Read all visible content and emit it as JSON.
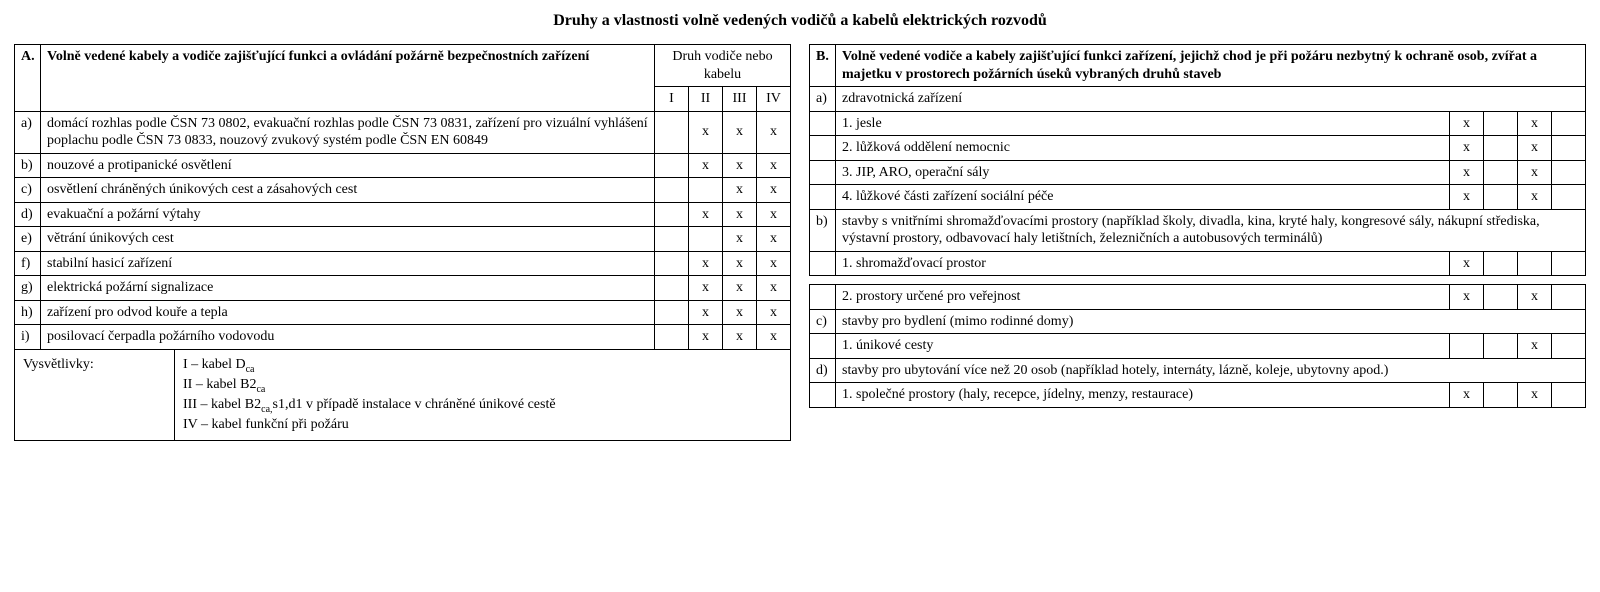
{
  "title": "Druhy a vlastnosti volně vedených vodičů a kabelů elektrických rozvodů",
  "tableA": {
    "sectionLetter": "A.",
    "sectionTitle": "Volně vedené kabely a vodiče zajišťující funkci a ovládání požárně bezpečnostních zařízení",
    "colGroup": "Druh vodiče nebo kabelu",
    "cols": [
      "I",
      "II",
      "III",
      "IV"
    ],
    "rows": [
      {
        "letter": "a)",
        "text": "domácí rozhlas podle ČSN 73 0802, evakuační rozhlas podle ČSN 73 0831, zařízení pro vizuální vyhlášení poplachu podle ČSN 73 0833, nouzový zvukový systém podle ČSN EN 60849",
        "marks": [
          "",
          "x",
          "x",
          "x"
        ]
      },
      {
        "letter": "b)",
        "text": "nouzové a protipanické osvětlení",
        "marks": [
          "",
          "x",
          "x",
          "x"
        ]
      },
      {
        "letter": "c)",
        "text": "osvětlení chráněných únikových cest a zásahových cest",
        "marks": [
          "",
          "",
          "x",
          "x"
        ]
      },
      {
        "letter": "d)",
        "text": "evakuační a požární výtahy",
        "marks": [
          "",
          "x",
          "x",
          "x"
        ]
      },
      {
        "letter": "e)",
        "text": "větrání únikových cest",
        "marks": [
          "",
          "",
          "x",
          "x"
        ]
      },
      {
        "letter": "f)",
        "text": "stabilní hasicí zařízení",
        "marks": [
          "",
          "x",
          "x",
          "x"
        ]
      },
      {
        "letter": "g)",
        "text": "elektrická požární signalizace",
        "marks": [
          "",
          "x",
          "x",
          "x"
        ]
      },
      {
        "letter": "h)",
        "text": "zařízení pro odvod kouře a tepla",
        "marks": [
          "",
          "x",
          "x",
          "x"
        ]
      },
      {
        "letter": "i)",
        "text": "posilovací čerpadla požárního vodovodu",
        "marks": [
          "",
          "x",
          "x",
          "x"
        ]
      }
    ],
    "legend": {
      "label": "Vysvětlivky:",
      "items": [
        "I   – kabel D",
        "II  – kabel B2",
        "III – kabel B2",
        "IV – kabel funkční při požáru"
      ],
      "suffix3": "s1,d1 v případě instalace v chráněné únikové cestě"
    }
  },
  "tableB": {
    "sectionLetter": "B.",
    "sectionTitle": "Volně vedené vodiče a kabely zajišťující funkci zařízení, jejichž chod je při požáru nezbytný k ochraně osob, zvířat a majetku v prostorech požárních úseků vybraných druhů staveb",
    "rows1": [
      {
        "letter": "a)",
        "text": "zdravotnická zařízení",
        "marks": null
      },
      {
        "letter": "",
        "text": "1. jesle",
        "marks": [
          "x",
          "",
          "x",
          ""
        ]
      },
      {
        "letter": "",
        "text": "2. lůžková oddělení nemocnic",
        "marks": [
          "x",
          "",
          "x",
          ""
        ]
      },
      {
        "letter": "",
        "text": "3. JIP, ARO, operační sály",
        "marks": [
          "x",
          "",
          "x",
          ""
        ]
      },
      {
        "letter": "",
        "text": "4. lůžkové části zařízení sociální péče",
        "marks": [
          "x",
          "",
          "x",
          ""
        ]
      },
      {
        "letter": "b)",
        "text": "stavby s vnitřními shromažďovacími prostory (například školy, divadla, kina, kryté haly, kongresové sály, nákupní střediska, výstavní prostory, odbavovací haly letištních, železničních a autobusových terminálů)",
        "marks": null
      },
      {
        "letter": "",
        "text": "1. shromažďovací prostor",
        "marks": [
          "x",
          "",
          "",
          ""
        ]
      }
    ],
    "rows2": [
      {
        "letter": "",
        "text": "2. prostory určené pro veřejnost",
        "marks": [
          "x",
          "",
          "x",
          ""
        ]
      },
      {
        "letter": "c)",
        "text": "stavby pro bydlení (mimo rodinné domy)",
        "marks": null
      },
      {
        "letter": "",
        "text": "1. únikové cesty",
        "marks": [
          "",
          "",
          "x",
          ""
        ]
      },
      {
        "letter": "d)",
        "text": "stavby pro ubytování více než 20 osob (například hotely, internáty, lázně, koleje, ubytovny apod.)",
        "marks": null
      },
      {
        "letter": "",
        "text": "1. společné prostory (haly, recepce, jídelny, menzy, restaurace)",
        "marks": [
          "x",
          "",
          "x",
          ""
        ]
      }
    ]
  }
}
